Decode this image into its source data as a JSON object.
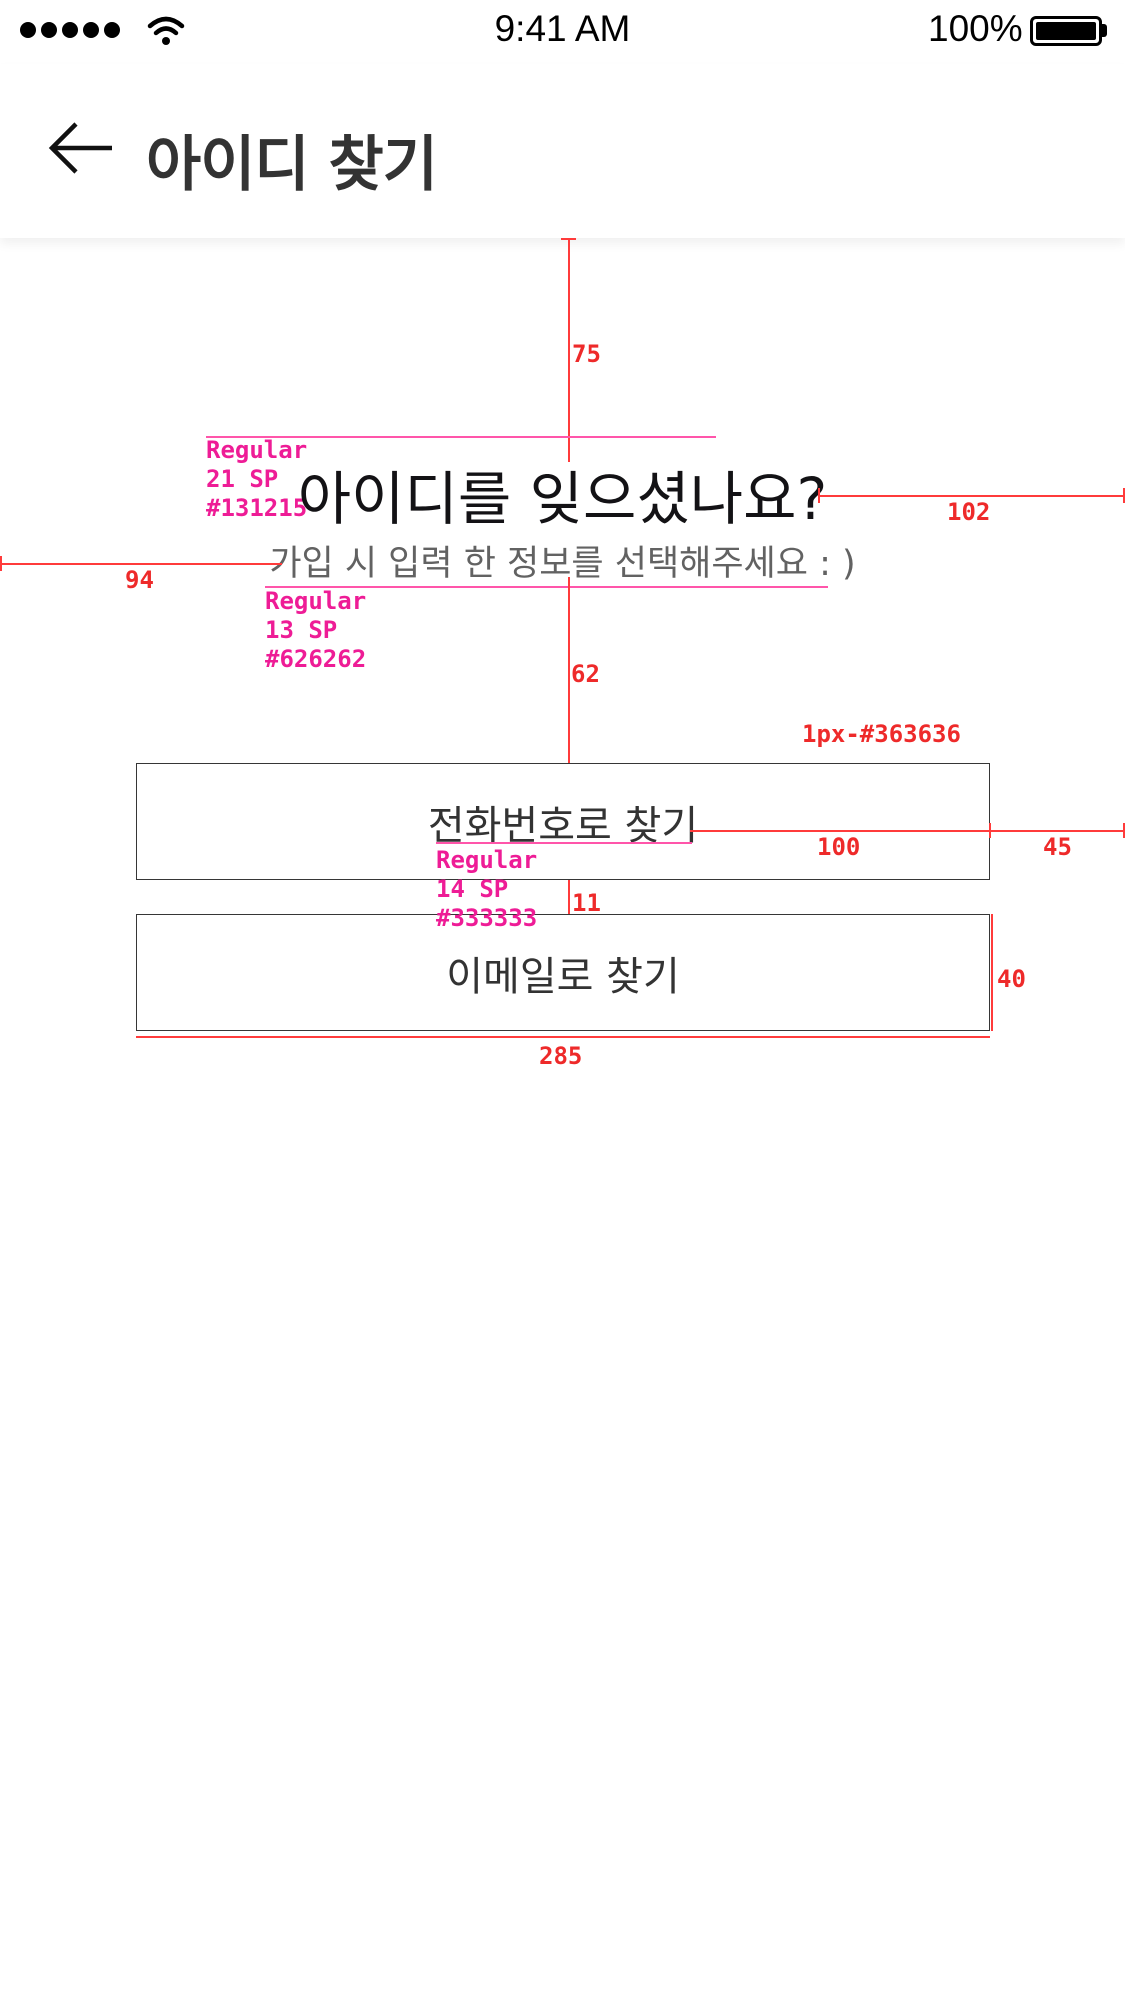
{
  "status_bar": {
    "time": "9:41 AM",
    "battery_percent": "100%",
    "signal_icon": "signal-dots-icon",
    "wifi_icon": "wifi-icon",
    "battery_icon": "battery-icon"
  },
  "app_bar": {
    "back_icon": "arrow-left-icon",
    "title": "아이디 찾기"
  },
  "main": {
    "headline": "아이디를 잊으셨나요?",
    "subtitle": "가입 시 입력 한 정보를 선택해주세요 : )",
    "phone_button_label": "전화번호로 찾기",
    "email_button_label": "이메일로 찾기"
  },
  "spec_annotations": {
    "gap_top": "75",
    "headline_right_margin": "102",
    "subtitle_left_margin": "94",
    "gap_subtitle_buttons": "62",
    "border_spec": "1px-#363636",
    "button_label_right_margin": "100",
    "button_right_margin": "45",
    "gap_between_buttons": "11",
    "button_height": "40",
    "button_width": "285",
    "headline_font": {
      "weight": "Regular",
      "size": "21 SP",
      "color": "#131215"
    },
    "subtitle_font": {
      "weight": "Regular",
      "size": "13 SP",
      "color": "#626262"
    },
    "button_font": {
      "weight": "Regular",
      "size": "14 SP",
      "color": "#333333"
    }
  },
  "colors": {
    "headline": "#131215",
    "subtitle": "#626262",
    "button_text": "#333333",
    "button_border": "#363636",
    "spec_red": "#ee2a2a",
    "spec_pink": "#ee1c96"
  }
}
